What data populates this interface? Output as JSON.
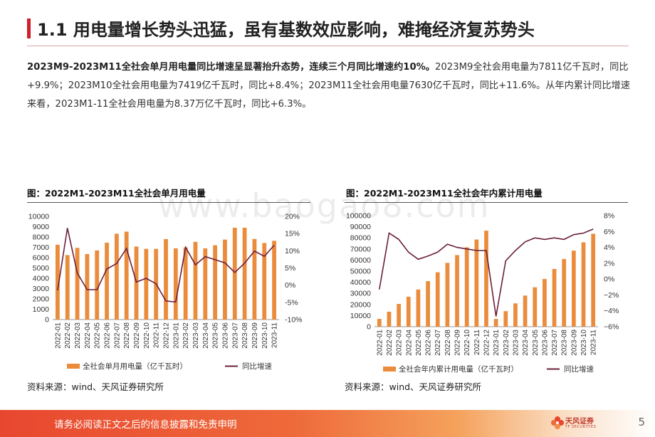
{
  "page": {
    "title": "1.1 用电量增长势头迅猛，虽有基数效应影响，难掩经济复苏势头",
    "summary_bold": "2023M9-2023M11全社会单月用电量同比增速呈显著抬升态势，连续三个月同比增速约10%。",
    "summary_rest": "2023M9全社会用电量为7811亿千瓦时，同比+9.9%；2023M10全社会用电量为7419亿千瓦时，同比+8.4%；2023M11全社会用电量7630亿千瓦时，同比+11.6%。从年内累计同比增速来看，2023M1-11全社会用电量为8.37万亿千瓦时，同比+6.3%。",
    "footer_text": "请务必阅读正文之后的信息披露和免责申明",
    "page_number": "5",
    "logo_text": "天风证券",
    "logo_sub": "TF SECURITIES",
    "watermark": "www.baogao8.com"
  },
  "colors": {
    "accent": "#cf1f2c",
    "bar": "#ea8c3c",
    "line": "#6b1f3c"
  },
  "chart_data": [
    {
      "type": "bar",
      "title": "图：2022M1-2023M11全社会单月用电量",
      "source": "资料来源：wind、天风证券研究所",
      "categories": [
        "2022-01",
        "2022-02",
        "2022-03",
        "2022-04",
        "2022-05",
        "2022-06",
        "2022-07",
        "2022-08",
        "2022-09",
        "2022-10",
        "2022-11",
        "2022-12",
        "2023-01",
        "2023-02",
        "2023-03",
        "2023-04",
        "2023-05",
        "2023-06",
        "2023-07",
        "2023-08",
        "2023-09",
        "2023-10",
        "2023-11"
      ],
      "ylim": [
        0,
        10000
      ],
      "yticks": [
        0,
        1000,
        2000,
        3000,
        4000,
        5000,
        6000,
        7000,
        8000,
        9000,
        10000
      ],
      "y2lim": [
        -10,
        20
      ],
      "y2ticks": [
        "20%",
        "15%",
        "10%",
        "5%",
        "0%",
        "-5%",
        "-10%"
      ],
      "series": [
        {
          "name": "全社会单月用电量（亿千瓦时）",
          "axis": "left",
          "values": [
            7250,
            6250,
            6950,
            6350,
            6700,
            7450,
            8320,
            8520,
            7080,
            6850,
            6850,
            7800,
            6900,
            7000,
            7530,
            6900,
            7200,
            7750,
            8900,
            8900,
            7811,
            7419,
            7630
          ]
        },
        {
          "name": "同比增速",
          "axis": "right",
          "values": [
            -1.5,
            16.6,
            3.5,
            -1.3,
            -1.3,
            4.7,
            6.3,
            10.7,
            0.9,
            2.0,
            0.4,
            -4.6,
            -4.9,
            11.0,
            5.9,
            8.3,
            7.4,
            6.5,
            3.7,
            6.4,
            9.9,
            8.4,
            11.6
          ]
        }
      ]
    },
    {
      "type": "bar",
      "title": "图：2022M1-2023M11全社会年内累计用电量",
      "source": "资料来源：wind、天风证券研究所",
      "categories": [
        "2022-01",
        "2022-02",
        "2022-03",
        "2022-04",
        "2022-05",
        "2022-06",
        "2022-07",
        "2022-08",
        "2022-09",
        "2022-10",
        "2022-11",
        "2022-12",
        "2023-01",
        "2023-02",
        "2023-03",
        "2023-04",
        "2023-05",
        "2023-06",
        "2023-07",
        "2023-08",
        "2023-09",
        "2023-10",
        "2023-11"
      ],
      "ylim": [
        0,
        100000
      ],
      "yticks": [
        0,
        10000,
        20000,
        30000,
        40000,
        50000,
        60000,
        70000,
        80000,
        90000,
        100000
      ],
      "y2lim": [
        -6,
        8
      ],
      "y2ticks": [
        "8%",
        "6%",
        "4%",
        "2%",
        "0%",
        "−2%",
        "−4%",
        "−6%"
      ],
      "series": [
        {
          "name": "全社会年内累计用电量（亿千瓦时）",
          "axis": "left",
          "values": [
            7000,
            13500,
            20500,
            27000,
            33500,
            41000,
            49000,
            57500,
            64500,
            71500,
            78500,
            86500,
            7000,
            14000,
            21000,
            28000,
            35500,
            43000,
            52000,
            61000,
            68500,
            76000,
            83700
          ]
        },
        {
          "name": "同比增速",
          "axis": "right",
          "values": [
            -1.3,
            5.8,
            5.0,
            3.4,
            2.5,
            2.9,
            3.4,
            4.4,
            4.0,
            3.8,
            3.6,
            3.6,
            -4.7,
            2.3,
            3.6,
            4.7,
            5.2,
            5.0,
            5.2,
            5.0,
            5.6,
            5.8,
            6.3
          ]
        }
      ]
    }
  ]
}
